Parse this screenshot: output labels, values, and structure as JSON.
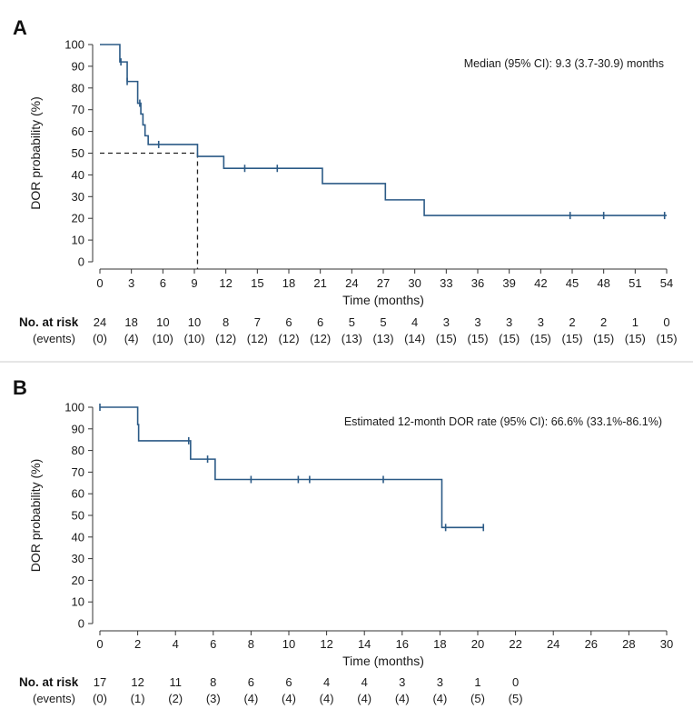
{
  "chart_data": [
    {
      "panel_label": "A",
      "type": "line",
      "subtype": "kaplan-meier",
      "title": "",
      "annotation": "Median (95% CI): 9.3 (3.7-30.9) months",
      "xlabel": "Time (months)",
      "ylabel": "DOR probability (%)",
      "xlim": [
        0,
        54
      ],
      "ylim": [
        0,
        100
      ],
      "xticks": [
        0,
        3,
        6,
        9,
        12,
        15,
        18,
        21,
        24,
        27,
        30,
        33,
        36,
        39,
        42,
        45,
        48,
        51,
        54
      ],
      "yticks": [
        0,
        10,
        20,
        30,
        40,
        50,
        60,
        70,
        80,
        90,
        100
      ],
      "color": "#2b5a86",
      "steps": [
        [
          0,
          100
        ],
        [
          1.9,
          100
        ],
        [
          1.9,
          92
        ],
        [
          2.6,
          92
        ],
        [
          2.6,
          83
        ],
        [
          3.6,
          83
        ],
        [
          3.6,
          73
        ],
        [
          3.9,
          73
        ],
        [
          3.9,
          68
        ],
        [
          4.1,
          68
        ],
        [
          4.1,
          63
        ],
        [
          4.3,
          63
        ],
        [
          4.3,
          58
        ],
        [
          4.6,
          58
        ],
        [
          4.6,
          54
        ],
        [
          9.3,
          54
        ],
        [
          9.3,
          48.5
        ],
        [
          11.8,
          48.5
        ],
        [
          11.8,
          43
        ],
        [
          21.2,
          43
        ],
        [
          21.2,
          36
        ],
        [
          27.2,
          36
        ],
        [
          27.2,
          28.5
        ],
        [
          30.9,
          28.5
        ],
        [
          30.9,
          21.3
        ],
        [
          54,
          21.3
        ]
      ],
      "censors": [
        [
          2.0,
          92
        ],
        [
          2.6,
          83
        ],
        [
          3.8,
          73
        ],
        [
          5.6,
          54
        ],
        [
          13.8,
          43
        ],
        [
          16.9,
          43
        ],
        [
          44.8,
          21.3
        ],
        [
          48.0,
          21.3
        ],
        [
          53.8,
          21.3
        ]
      ],
      "median_guide": {
        "x": 9.3,
        "y": 50
      },
      "risk_table": {
        "row_label": "No. at risk",
        "events_label": "(events)",
        "times": [
          0,
          3,
          6,
          9,
          12,
          15,
          18,
          21,
          24,
          27,
          30,
          33,
          36,
          39,
          42,
          45,
          48,
          51,
          54
        ],
        "at_risk": [
          "24",
          "18",
          "10",
          "10",
          "8",
          "7",
          "6",
          "6",
          "5",
          "5",
          "4",
          "3",
          "3",
          "3",
          "3",
          "2",
          "2",
          "1",
          "0"
        ],
        "events": [
          "(0)",
          "(4)",
          "(10)",
          "(10)",
          "(12)",
          "(12)",
          "(12)",
          "(12)",
          "(13)",
          "(13)",
          "(14)",
          "(15)",
          "(15)",
          "(15)",
          "(15)",
          "(15)",
          "(15)",
          "(15)",
          "(15)"
        ]
      }
    },
    {
      "panel_label": "B",
      "type": "line",
      "subtype": "kaplan-meier",
      "title": "",
      "annotation": "Estimated 12-month DOR rate (95% CI): 66.6% (33.1%-86.1%)",
      "xlabel": "Time (months)",
      "ylabel": "DOR probability (%)",
      "xlim": [
        0,
        30
      ],
      "ylim": [
        0,
        100
      ],
      "xticks": [
        0,
        2,
        4,
        6,
        8,
        10,
        12,
        14,
        16,
        18,
        20,
        22,
        24,
        26,
        28,
        30
      ],
      "yticks": [
        0,
        10,
        20,
        30,
        40,
        50,
        60,
        70,
        80,
        90,
        100
      ],
      "color": "#2b5a86",
      "steps": [
        [
          0,
          100
        ],
        [
          2.0,
          100
        ],
        [
          2.0,
          92
        ],
        [
          2.05,
          92
        ],
        [
          2.05,
          84.5
        ],
        [
          4.8,
          84.5
        ],
        [
          4.8,
          76
        ],
        [
          6.1,
          76
        ],
        [
          6.1,
          66.6
        ],
        [
          18.1,
          66.6
        ],
        [
          18.1,
          44.4
        ],
        [
          20.3,
          44.4
        ]
      ],
      "censors": [
        [
          0,
          100
        ],
        [
          4.7,
          84.5
        ],
        [
          5.7,
          76
        ],
        [
          8.0,
          66.6
        ],
        [
          10.5,
          66.6
        ],
        [
          11.1,
          66.6
        ],
        [
          15.0,
          66.6
        ],
        [
          18.3,
          44.4
        ],
        [
          20.3,
          44.4
        ]
      ],
      "risk_table": {
        "row_label": "No. at risk",
        "events_label": "(events)",
        "times": [
          0,
          2,
          4,
          6,
          8,
          10,
          12,
          14,
          16,
          18,
          20,
          22
        ],
        "at_risk": [
          "17",
          "12",
          "11",
          "8",
          "6",
          "6",
          "4",
          "4",
          "3",
          "3",
          "1",
          "0"
        ],
        "events": [
          "(0)",
          "(1)",
          "(2)",
          "(3)",
          "(4)",
          "(4)",
          "(4)",
          "(4)",
          "(4)",
          "(4)",
          "(5)",
          "(5)"
        ]
      }
    }
  ]
}
